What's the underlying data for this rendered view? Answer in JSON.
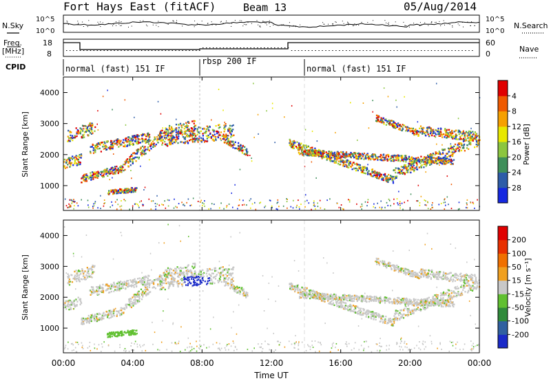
{
  "header": {
    "title": "Fort Hays East (fitACF)",
    "beam": "Beam 13",
    "date": "05/Aug/2014"
  },
  "top_panels": {
    "nsky_label": "N.Sky",
    "nsearch_label": "N.Search",
    "noise_ticks_left": [
      "10^5",
      "10^0"
    ],
    "noise_ticks_right": [
      "10^5",
      "10^0"
    ],
    "freq_label_1": "Freq.",
    "freq_label_2": "[MHz]",
    "freq_ticks": [
      "18",
      "8"
    ],
    "nave_label": "Nave",
    "nave_ticks": [
      "60",
      "0"
    ],
    "cpid_label": "CPID",
    "cpid_segments": [
      {
        "start_hour": 0.0,
        "end_hour": 8.0,
        "label": "normal (fast) 151 IF"
      },
      {
        "start_hour": 8.0,
        "end_hour": 13.0,
        "label": "rbsp 200 IF"
      },
      {
        "start_hour": 13.0,
        "end_hour": 24.0,
        "label": "normal (fast) 151 IF"
      }
    ]
  },
  "chart_data": [
    {
      "type": "heatmap",
      "name": "power",
      "ylabel": "Slant Range [km]",
      "yticks": [
        "1000",
        "2000",
        "3000",
        "4000"
      ],
      "ylim": [
        200,
        4500
      ],
      "xlim": [
        0,
        24
      ],
      "colorbar_label": "Power [dB]",
      "colorbar_ticks": [
        "4",
        "8",
        "12",
        "16",
        "20",
        "24",
        "28"
      ],
      "colorbar_colors": [
        "#1528e0",
        "#2d5ca8",
        "#3f8f5a",
        "#8cc63f",
        "#e8e800",
        "#f6a000",
        "#ef5a00",
        "#e00000"
      ]
    },
    {
      "type": "heatmap",
      "name": "velocity",
      "ylabel": "Slant Range [km]",
      "yticks": [
        "1000",
        "2000",
        "3000",
        "4000"
      ],
      "ylim": [
        200,
        4500
      ],
      "xlim": [
        0,
        24
      ],
      "colorbar_label": "Velocity [m s⁻¹]",
      "colorbar_ticks": [
        "200",
        "100",
        "50",
        "15",
        "-15",
        "-50",
        "-100",
        "-200"
      ],
      "colorbar_colors": [
        "#1a2ac8",
        "#3060a0",
        "#2f8a3a",
        "#60c030",
        "#c8c8c8",
        "#f0a020",
        "#f07000",
        "#e83000",
        "#e00000"
      ]
    }
  ],
  "x_axis": {
    "ticks": [
      "00:00",
      "04:00",
      "08:00",
      "12:00",
      "16:00",
      "20:00",
      "00:00"
    ],
    "label": "Time UT"
  }
}
